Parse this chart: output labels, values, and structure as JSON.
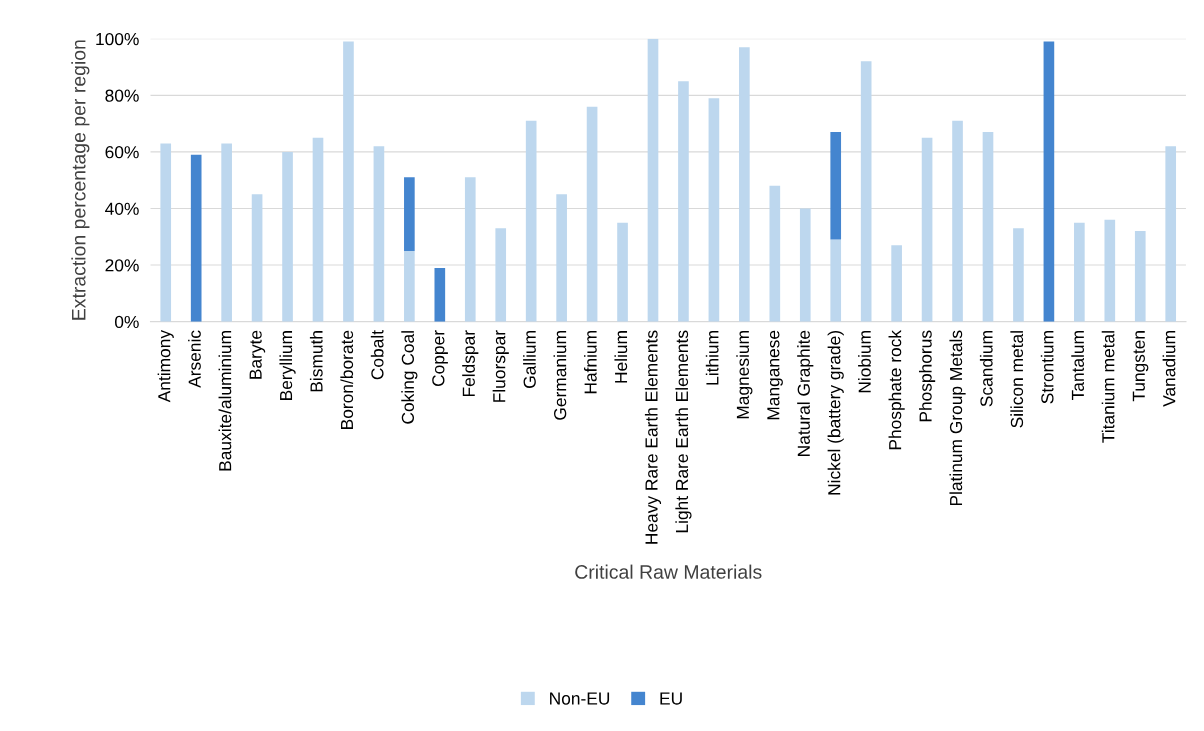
{
  "chart_data": {
    "type": "bar",
    "stacked": true,
    "xlabel": "Critical Raw Materials",
    "ylabel": "Extraction percentage per region",
    "categories": [
      "Antimony",
      "Arsenic",
      "Bauxite/aluminium",
      "Baryte",
      "Beryllium",
      "Bismuth",
      "Boron/borate",
      "Cobalt",
      "Coking Coal",
      "Copper",
      "Feldspar",
      "Fluorspar",
      "Gallium",
      "Germanium",
      "Hafnium",
      "Helium",
      "Heavy Rare Earth Elements",
      "Light Rare Earth Elements",
      "Lithium",
      "Magnesium",
      "Manganese",
      "Natural Graphite",
      "Nickel (battery grade)",
      "Niobium",
      "Phosphate rock",
      "Phosphorus",
      "Platinum Group Metals",
      "Scandium",
      "Silicon metal",
      "Strontium",
      "Tantalum",
      "Titanium metal",
      "Tungsten",
      "Vanadium"
    ],
    "series": [
      {
        "name": "Non-EU",
        "color": "#bdd7ee",
        "values": [
          63,
          0,
          63,
          45,
          60,
          65,
          99,
          62,
          25,
          0,
          51,
          33,
          71,
          45,
          76,
          35,
          100,
          85,
          79,
          97,
          48,
          40,
          29,
          92,
          27,
          65,
          71,
          67,
          33,
          0,
          35,
          36,
          32,
          62
        ]
      },
      {
        "name": "EU",
        "color": "#4485cf",
        "values": [
          0,
          59,
          0,
          0,
          0,
          0,
          0,
          0,
          26,
          19,
          0,
          0,
          0,
          0,
          0,
          0,
          0,
          0,
          0,
          0,
          0,
          0,
          38,
          0,
          0,
          0,
          0,
          0,
          0,
          99,
          0,
          0,
          0,
          0
        ]
      }
    ],
    "ylim": [
      0,
      100
    ],
    "yticks": [
      {
        "value": 0,
        "label": "0%"
      },
      {
        "value": 20,
        "label": "20%"
      },
      {
        "value": 40,
        "label": "40%"
      },
      {
        "value": 60,
        "label": "60%"
      },
      {
        "value": 80,
        "label": "80%"
      },
      {
        "value": 100,
        "label": "100%"
      }
    ],
    "grid": "y",
    "legend": "bottom"
  }
}
